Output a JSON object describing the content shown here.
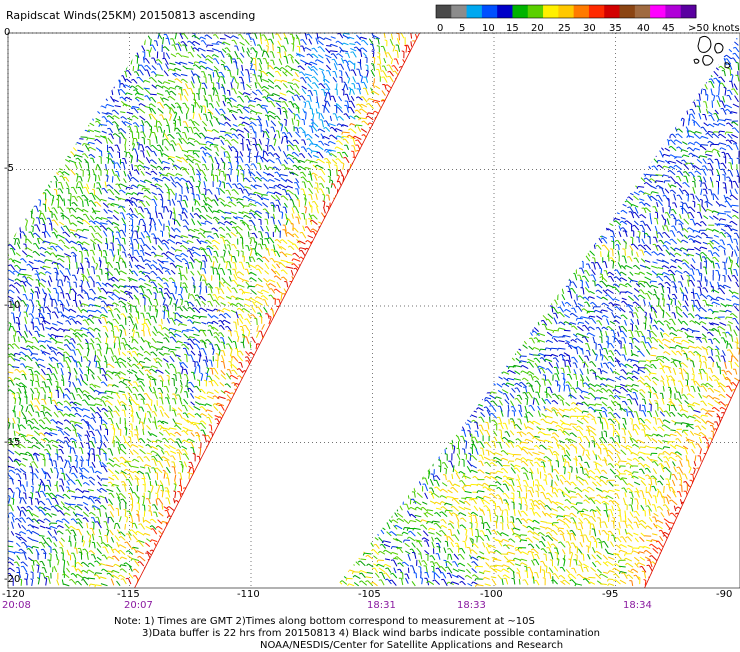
{
  "title": "Rapidscat Winds(25KM) 20150813 ascending",
  "legend": {
    "colors": [
      "#4a4a4a",
      "#8c8c8c",
      "#00a8f0",
      "#0050ff",
      "#0000c8",
      "#00b400",
      "#5ad000",
      "#fff000",
      "#ffc800",
      "#ff7a00",
      "#ff2a00",
      "#d20000",
      "#8b4513",
      "#a06a40",
      "#ff00ff",
      "#b000d8",
      "#5a00a0"
    ],
    "labels": [
      "0",
      "5",
      "10",
      "15",
      "20",
      "25",
      "30",
      "35",
      "40",
      "45",
      ">50 knots"
    ]
  },
  "axes": {
    "lon_labels": [
      "-120",
      "-115",
      "-110",
      "-105",
      "-100",
      "-95",
      "-90"
    ],
    "lat_labels": [
      "0",
      "-5",
      "-10",
      "-15",
      "-20"
    ]
  },
  "time_labels": [
    "20:08",
    "20:07",
    "18:31",
    "18:33",
    "18:34"
  ],
  "notes": {
    "line1": "Note: 1) Times are GMT 2)Times along bottom correspond to measurement at ~10S",
    "line2": "3)Data buffer is 22 hrs from 20150813 4) Black wind barbs indicate possible contamination",
    "line3": "NOAA/NESDIS/Center for Satellite Applications and Research"
  }
}
